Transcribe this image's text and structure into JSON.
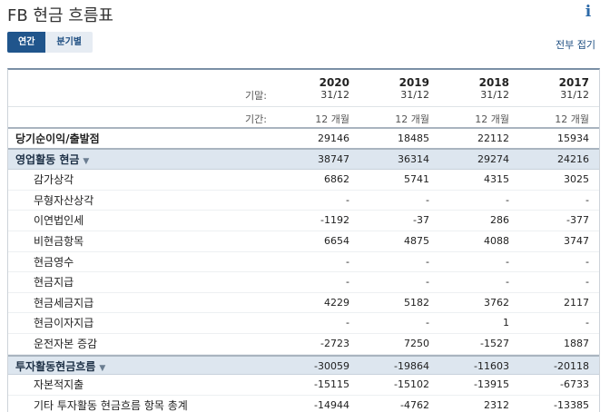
{
  "page": {
    "title": "FB 현금 흐름표"
  },
  "tabs": {
    "annual": "연간",
    "quarterly": "분기별"
  },
  "links": {
    "collapse_all": "전부 접기"
  },
  "header": {
    "period_end_label": "기말:",
    "period_length_label": "기간:",
    "columns": [
      {
        "year": "2020",
        "date": "31/12",
        "period": "12 개월"
      },
      {
        "year": "2019",
        "date": "31/12",
        "period": "12 개월"
      },
      {
        "year": "2018",
        "date": "31/12",
        "period": "12 개월"
      },
      {
        "year": "2017",
        "date": "31/12",
        "period": "12 개월"
      }
    ]
  },
  "rows": {
    "net_income": {
      "label": "당기순이익/출발점",
      "values": [
        "29146",
        "18485",
        "22112",
        "15934"
      ]
    },
    "operating": {
      "label": "영업활동 현금",
      "values": [
        "38747",
        "36314",
        "29274",
        "24216"
      ]
    },
    "depreciation": {
      "label": "감가상각",
      "values": [
        "6862",
        "5741",
        "4315",
        "3025"
      ]
    },
    "amortization": {
      "label": "무형자산상각",
      "values": [
        "-",
        "-",
        "-",
        "-"
      ]
    },
    "deferred_tax": {
      "label": "이연법인세",
      "values": [
        "-1192",
        "-37",
        "286",
        "-377"
      ]
    },
    "non_cash": {
      "label": "비현금항목",
      "values": [
        "6654",
        "4875",
        "4088",
        "3747"
      ]
    },
    "cash_receipts": {
      "label": "현금영수",
      "values": [
        "-",
        "-",
        "-",
        "-"
      ]
    },
    "cash_payments": {
      "label": "현금지급",
      "values": [
        "-",
        "-",
        "-",
        "-"
      ]
    },
    "cash_taxes": {
      "label": "현금세금지급",
      "values": [
        "4229",
        "5182",
        "3762",
        "2117"
      ]
    },
    "cash_interest": {
      "label": "현금이자지급",
      "values": [
        "-",
        "-",
        "1",
        "-"
      ]
    },
    "working_capital": {
      "label": "운전자본 증감",
      "values": [
        "-2723",
        "7250",
        "-1527",
        "1887"
      ]
    },
    "investing": {
      "label": "투자활동현금흐름",
      "values": [
        "-30059",
        "-19864",
        "-11603",
        "-20118"
      ]
    },
    "capex": {
      "label": "자본적지출",
      "values": [
        "-15115",
        "-15102",
        "-13915",
        "-6733"
      ]
    },
    "other_investing": {
      "label": "기타 투자활동 현금흐름 항목 총계",
      "values": [
        "-14944",
        "-4762",
        "2312",
        "-13385"
      ]
    }
  },
  "icons": {
    "info": "info-icon",
    "expand": "chevron-down-icon"
  },
  "colors": {
    "accent": "#20558c",
    "section_bg": "#dde6ef"
  }
}
